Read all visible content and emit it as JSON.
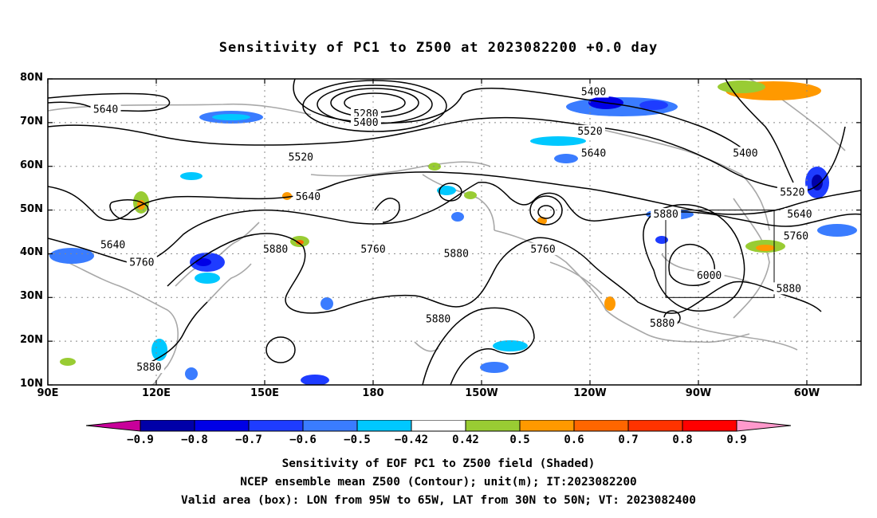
{
  "title": "Sensitivity of PC1 to Z500 at 2023082200 +0.0 day",
  "lat_axis": {
    "labels": [
      "80N",
      "70N",
      "60N",
      "50N",
      "40N",
      "30N",
      "20N",
      "10N"
    ],
    "values": [
      80,
      70,
      60,
      50,
      40,
      30,
      20,
      10
    ]
  },
  "lon_axis": {
    "labels": [
      "90E",
      "120E",
      "150E",
      "180",
      "150W",
      "120W",
      "90W",
      "60W"
    ],
    "values": [
      90,
      120,
      150,
      180,
      210,
      240,
      270,
      300
    ]
  },
  "map_extent": {
    "lon_min": 90,
    "lon_max": 315,
    "lat_min": 10,
    "lat_max": 80
  },
  "valid_box": {
    "lon_west": -95,
    "lon_east": -65,
    "lat_south": 30,
    "lat_north": 50
  },
  "contour_labels": [
    {
      "text": "5280",
      "lon": 178,
      "lat": 72
    },
    {
      "text": "5400",
      "lon": 178,
      "lat": 70
    },
    {
      "text": "5400",
      "lon": 241,
      "lat": 77
    },
    {
      "text": "5400",
      "lon": 283,
      "lat": 63
    },
    {
      "text": "5520",
      "lon": 160,
      "lat": 62
    },
    {
      "text": "5520",
      "lon": 240,
      "lat": 68
    },
    {
      "text": "5520",
      "lon": 296,
      "lat": 54
    },
    {
      "text": "5640",
      "lon": 106,
      "lat": 73
    },
    {
      "text": "5640",
      "lon": 241,
      "lat": 63
    },
    {
      "text": "5640",
      "lon": 162,
      "lat": 53
    },
    {
      "text": "5640",
      "lon": 108,
      "lat": 42
    },
    {
      "text": "5640",
      "lon": 298,
      "lat": 49
    },
    {
      "text": "5760",
      "lon": 116,
      "lat": 38
    },
    {
      "text": "5760",
      "lon": 180,
      "lat": 41
    },
    {
      "text": "5760",
      "lon": 227,
      "lat": 41
    },
    {
      "text": "5760",
      "lon": 297,
      "lat": 44
    },
    {
      "text": "5880",
      "lon": 153,
      "lat": 41
    },
    {
      "text": "5880",
      "lon": 203,
      "lat": 40
    },
    {
      "text": "5880",
      "lon": 198,
      "lat": 25
    },
    {
      "text": "5880",
      "lon": 261,
      "lat": 49
    },
    {
      "text": "5880",
      "lon": 260,
      "lat": 24
    },
    {
      "text": "5880",
      "lon": 118,
      "lat": 14
    },
    {
      "text": "5880",
      "lon": 295,
      "lat": 32
    },
    {
      "text": "6000",
      "lon": 273,
      "lat": 35
    }
  ],
  "colorbar": {
    "labels": [
      "-0.9",
      "-0.8",
      "-0.7",
      "-0.6",
      "-0.5",
      "-0.42",
      "0.42",
      "0.5",
      "0.6",
      "0.7",
      "0.8",
      "0.9"
    ],
    "colors": [
      "#c8009a",
      "#0000a8",
      "#0000e6",
      "#1e3cff",
      "#3a7cff",
      "#00c8ff",
      "#ffffff",
      "#99cc33",
      "#ff9900",
      "#ff6600",
      "#ff3300",
      "#ff0000",
      "#ff99cc"
    ]
  },
  "footer": {
    "line1": "Sensitivity of EOF PC1 to Z500 field (Shaded)",
    "line2": "NCEP ensemble mean Z500 (Contour); unit(m); IT:2023082200",
    "line3": "Valid area (box): LON from 95W to 65W, LAT from 30N to 50N; VT: 2023082400"
  }
}
